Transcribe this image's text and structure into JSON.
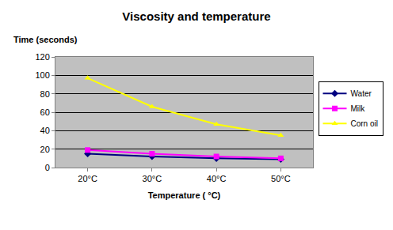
{
  "chart_data": {
    "type": "line",
    "title": "Viscosity and temperature",
    "ylabel": "Time (seconds)",
    "xlabel": "Temperature ( °C)",
    "categories": [
      "20°C",
      "30°C",
      "40°C",
      "50°C"
    ],
    "series": [
      {
        "name": "Water",
        "color": "#000080",
        "marker": "diamond",
        "line_style": "solid",
        "values": [
          15,
          12,
          10,
          9
        ]
      },
      {
        "name": "Milk",
        "color": "#ff00ff",
        "marker": "square",
        "line_style": "solid",
        "values": [
          19,
          15,
          12,
          10
        ]
      },
      {
        "name": "Corn oil",
        "color": "#ffff00",
        "marker": "triangle-up",
        "line_style": "solid",
        "values": [
          97,
          66,
          47,
          35
        ]
      }
    ],
    "ylim": [
      0,
      120
    ],
    "yticks": [
      0,
      20,
      40,
      60,
      80,
      100,
      120
    ],
    "grid": true,
    "legend": "right"
  }
}
